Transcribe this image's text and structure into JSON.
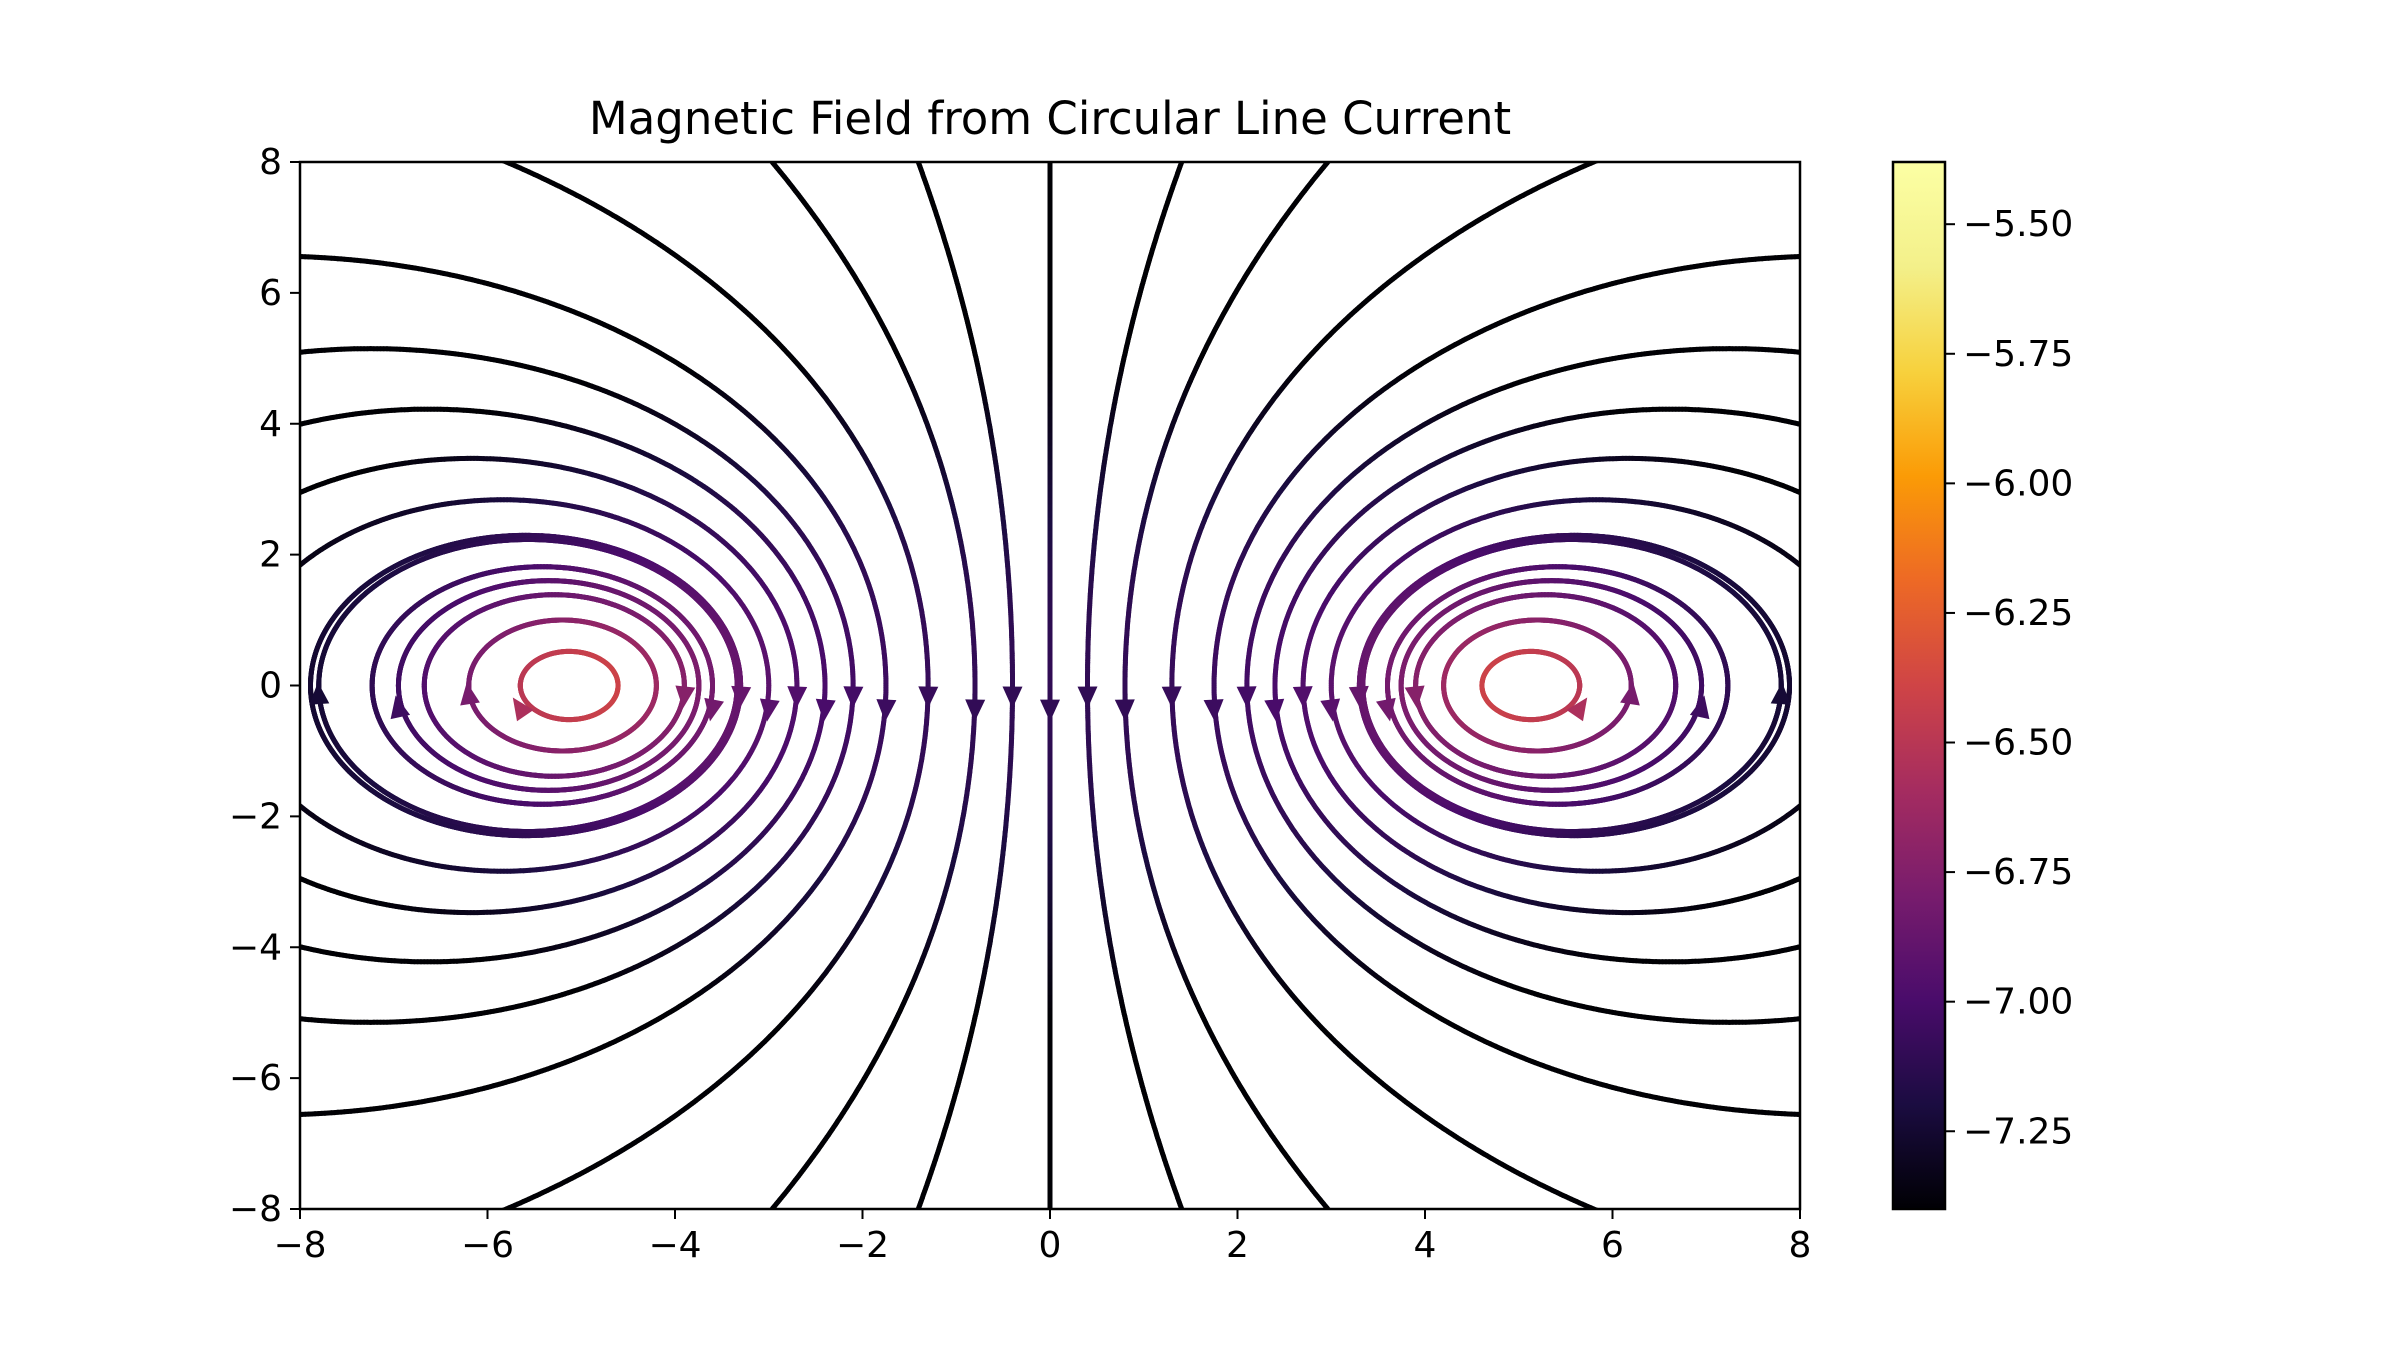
{
  "chart_data": {
    "type": "streamplot",
    "title": "Magnetic Field from Circular Line Current",
    "xlabel": "",
    "ylabel": "",
    "xlim": [
      -8,
      8
    ],
    "ylim": [
      -8,
      8
    ],
    "x_ticks": [
      -8,
      -6,
      -4,
      -2,
      0,
      2,
      4,
      6,
      8
    ],
    "y_ticks": [
      -8,
      -6,
      -4,
      -2,
      0,
      2,
      4,
      6,
      8
    ],
    "x_tick_labels": [
      "−8",
      "−6",
      "−4",
      "−2",
      "0",
      "2",
      "4",
      "6",
      "8"
    ],
    "y_tick_labels": [
      "−8",
      "−6",
      "−4",
      "−2",
      "0",
      "2",
      "4",
      "6",
      "8"
    ],
    "grid": false,
    "loop_crossings_x": [
      -5.1,
      5.1
    ],
    "colormap": "inferno",
    "colorbar": {
      "min": -7.4,
      "max": -5.38,
      "ticks": [
        -5.5,
        -5.75,
        -6.0,
        -6.25,
        -6.5,
        -6.75,
        -7.0,
        -7.25
      ],
      "tick_labels": [
        "−5.50",
        "−5.75",
        "−6.00",
        "−6.25",
        "−6.50",
        "−6.75",
        "−7.00",
        "−7.25"
      ]
    }
  }
}
